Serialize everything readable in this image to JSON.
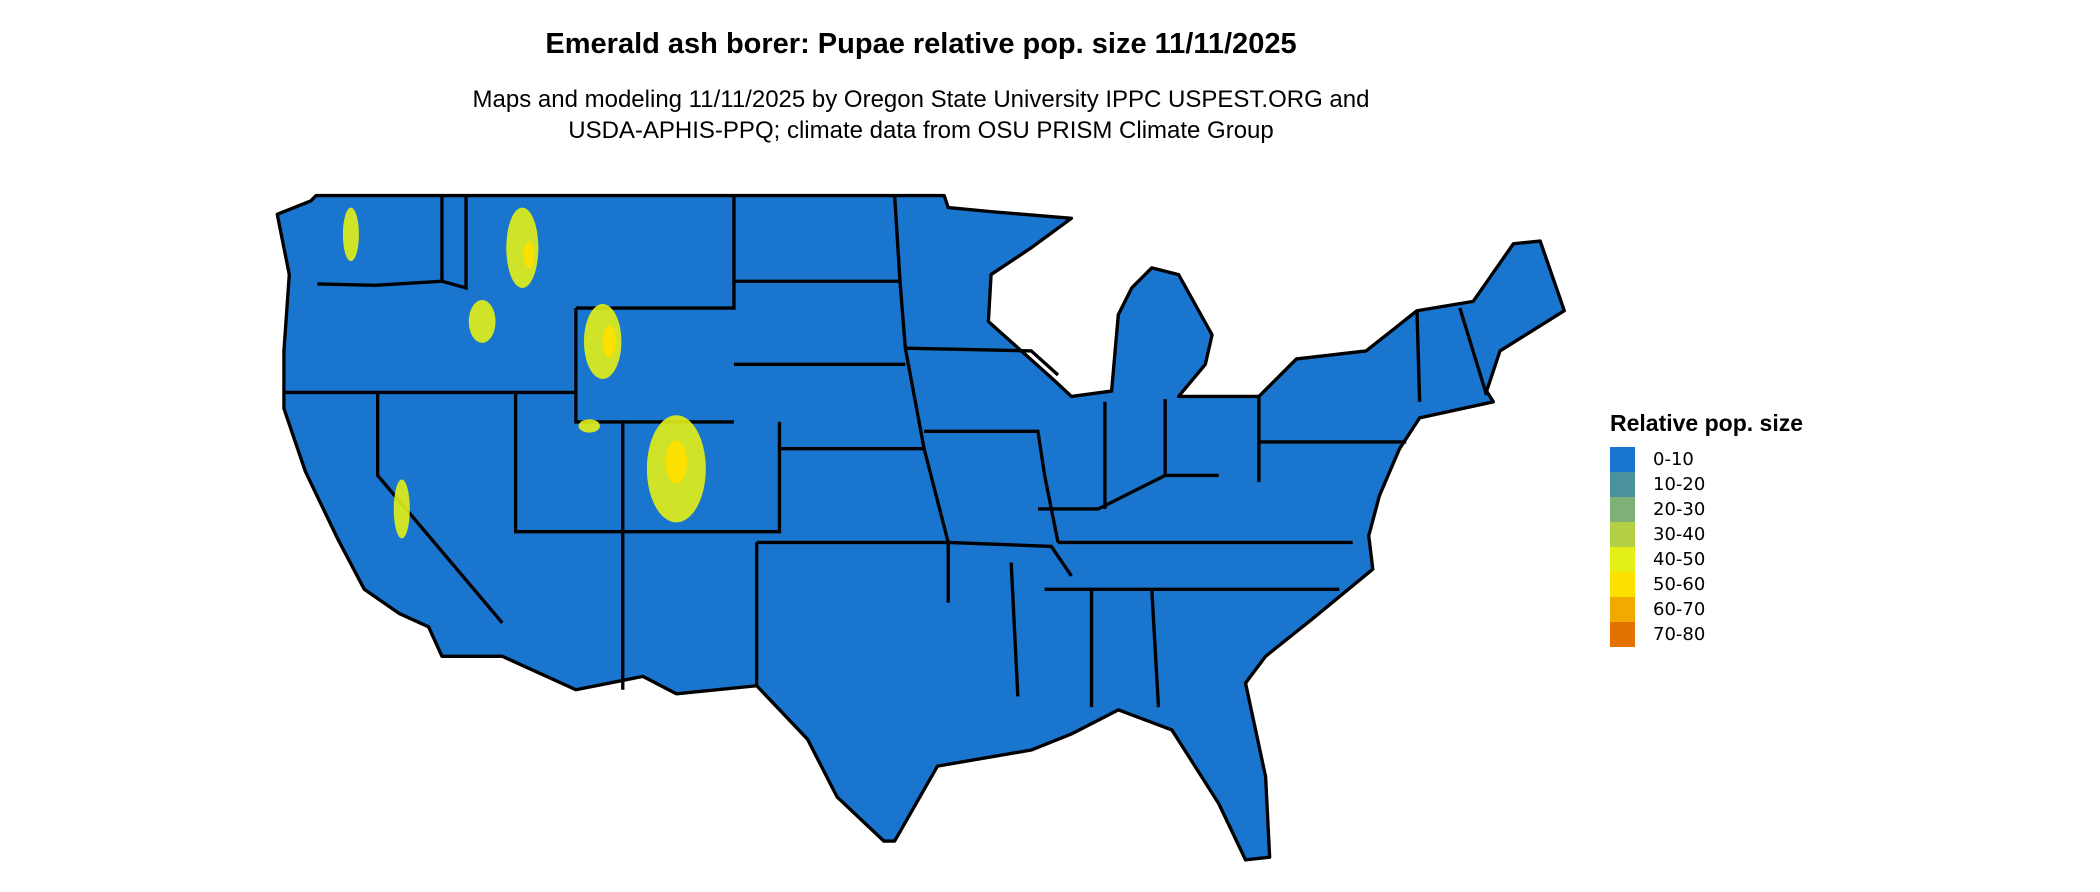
{
  "title": "Emerald ash borer: Pupae relative pop. size 11/11/2025",
  "subtitle_line1": "Maps and modeling 11/11/2025 by Oregon State University IPPC USPEST.ORG and",
  "subtitle_line2": "USDA-APHIS-PPQ; climate data from OSU PRISM Climate Group",
  "map": {
    "region": "Contiguous United States",
    "dominant_class": "0-10",
    "higher_classes_present": [
      "40-50",
      "50-60"
    ],
    "high_value_areas": [
      "Cascades",
      "Northern Rockies",
      "Wyoming ranges",
      "Colorado Rockies",
      "Sierra Nevada",
      "Utah ranges"
    ]
  },
  "legend": {
    "title": "Relative pop. size",
    "items": [
      {
        "label": "0-10",
        "color": "#1a75cf"
      },
      {
        "label": "10-20",
        "color": "#4a929c"
      },
      {
        "label": "20-30",
        "color": "#7fb077"
      },
      {
        "label": "30-40",
        "color": "#b2cf45"
      },
      {
        "label": "40-50",
        "color": "#e3ef16"
      },
      {
        "label": "50-60",
        "color": "#fbe000"
      },
      {
        "label": "60-70",
        "color": "#f0aa00"
      },
      {
        "label": "70-80",
        "color": "#e47200"
      }
    ]
  }
}
